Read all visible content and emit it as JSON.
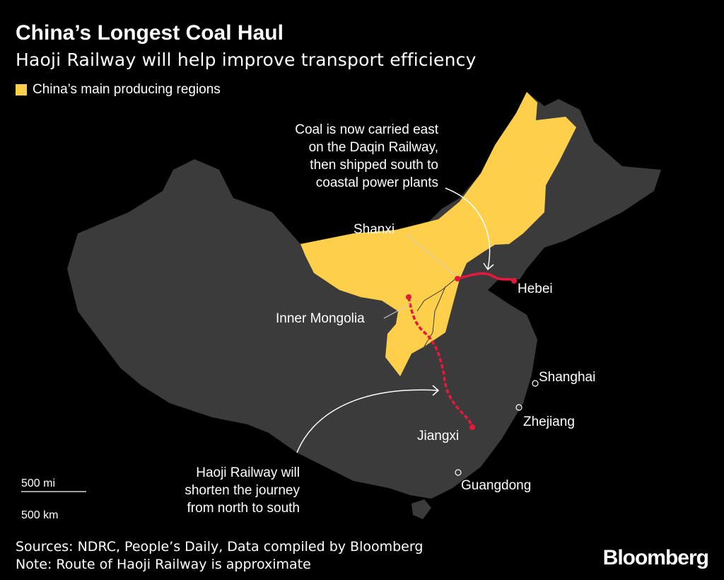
{
  "header": {
    "title": "China’s Longest Coal Haul",
    "subtitle": "Haoji Railway will help improve transport efficiency"
  },
  "legend": {
    "label": "China’s main producing regions",
    "color": "#fdcf4b"
  },
  "colors": {
    "background": "#000000",
    "land": "#3b3b3b",
    "producing": "#fdcf4b",
    "railway": "#e8173c"
  },
  "labels": {
    "shanxi": "Shanxi",
    "inner_mongolia": "Inner Mongolia",
    "hebei": "Hebei",
    "shanghai": "Shanghai",
    "zhejiang": "Zhejiang",
    "jiangxi": "Jiangxi",
    "guangdong": "Guangdong"
  },
  "annotations": {
    "daqin": [
      "Coal is now carried east",
      "on the Daqin Railway,",
      "then shipped south to",
      "coastal power plants"
    ],
    "haoji": [
      "Haoji Railway will",
      "shorten the journey",
      "from north to south"
    ]
  },
  "scale": {
    "miles": "500 mi",
    "km": "500 km"
  },
  "footer": {
    "sources": "Sources: NDRC, People’s Daily, Data compiled by Bloomberg",
    "note": "Note: Route of Haoji Railway is approximate",
    "logo": "Bloomberg"
  }
}
